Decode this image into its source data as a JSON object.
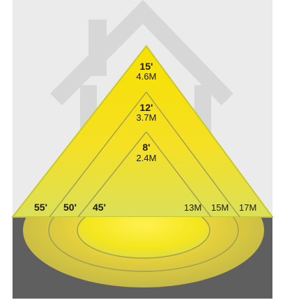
{
  "colors": {
    "wall_background": "#ebebeb",
    "house_outline": "#d7d7d7",
    "floor": "#5f5f60",
    "beam_light": "#f5d70f",
    "beam_edge": "#c7c92b",
    "ground_pool": "#d8d23a",
    "ring_line": "#9d9d55"
  },
  "icons": {
    "background_icon": "house-icon",
    "light_effect": "light-cone-icon"
  },
  "heights": [
    {
      "feet": "15'",
      "meters": "4.6M"
    },
    {
      "feet": "12'",
      "meters": "3.7M"
    },
    {
      "feet": "8'",
      "meters": "2.4M"
    }
  ],
  "beam_angles": [
    "55'",
    "50'",
    "45'"
  ],
  "spread_diameters": [
    "13M",
    "15M",
    "17M"
  ]
}
